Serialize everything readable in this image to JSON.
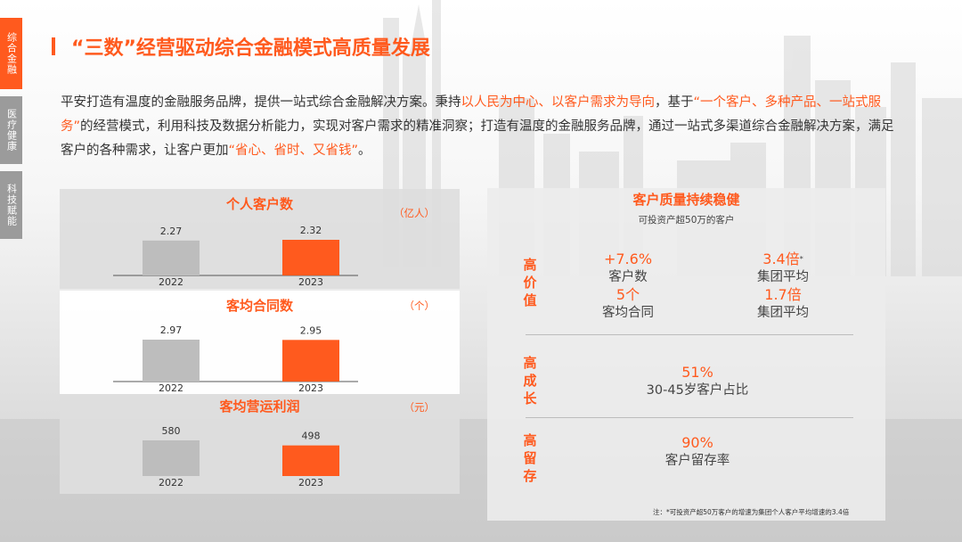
{
  "nav": {
    "tabs": [
      {
        "label": "综合金融",
        "active": true
      },
      {
        "label": "医疗健康",
        "active": false
      },
      {
        "label": "科技赋能",
        "active": false
      }
    ]
  },
  "header": {
    "title": "“三数”经营驱动综合金融模式高质量发展"
  },
  "intro": {
    "p1": "平安打造有温度的金融服务品牌，提供一站式综合金融解决方案。",
    "p2": "秉持",
    "h1": "以人民为中心、以客户需求为导向",
    "p3": "，基于",
    "h2": "“一个客户、多种产品、一站式服务”",
    "p4": "的经营模式，利用科技及数据分析能力，实现对客户需求的精准洞察；打造有温度的金融服务品牌，通过一站式多渠道综合金融解决方案，满足客户的各种需求，让客户更加",
    "h3": "“省心、省时、又省钱”",
    "p5": "。"
  },
  "colors": {
    "accent": "#ff5a1e",
    "bar_prior": "#bdbdbd",
    "bar_current": "#ff5a1e"
  },
  "chart_data": [
    {
      "type": "bar",
      "title": "个人客户数",
      "unit": "（亿人）",
      "categories": [
        "2022",
        "2023"
      ],
      "values": [
        2.27,
        2.32
      ],
      "value_labels": [
        "2.27",
        "2.32"
      ]
    },
    {
      "type": "bar",
      "title": "客均合同数",
      "unit": "（个）",
      "categories": [
        "2022",
        "2023"
      ],
      "values": [
        2.97,
        2.95
      ],
      "value_labels": [
        "2.97",
        "2.95"
      ]
    },
    {
      "type": "bar",
      "title": "客均营运利润",
      "unit": "（元）",
      "categories": [
        "2022",
        "2023"
      ],
      "values": [
        580,
        498
      ],
      "value_labels": [
        "580",
        "498"
      ]
    }
  ],
  "quality": {
    "title": "客户质量持续稳健",
    "subtitle": "可投资产超50万的客户",
    "rows": [
      {
        "label": "高价值",
        "metrics": [
          {
            "value": "+7.6%",
            "label": "客户数",
            "mark": ""
          },
          {
            "value": "3.4倍",
            "label": "集团平均",
            "mark": "*"
          },
          {
            "value": "5个",
            "label": "客均合同",
            "mark": ""
          },
          {
            "value": "1.7倍",
            "label": "集团平均",
            "mark": ""
          }
        ]
      },
      {
        "label": "高成长",
        "metrics": [
          {
            "value": "51%",
            "label": "30-45岁客户占比",
            "mark": ""
          }
        ]
      },
      {
        "label": "高留存",
        "metrics": [
          {
            "value": "90%",
            "label": "客户留存率",
            "mark": ""
          }
        ]
      }
    ]
  },
  "footnote": "注：*可投资产超50万客户的增速为集团个人客户平均增速的3.4倍"
}
